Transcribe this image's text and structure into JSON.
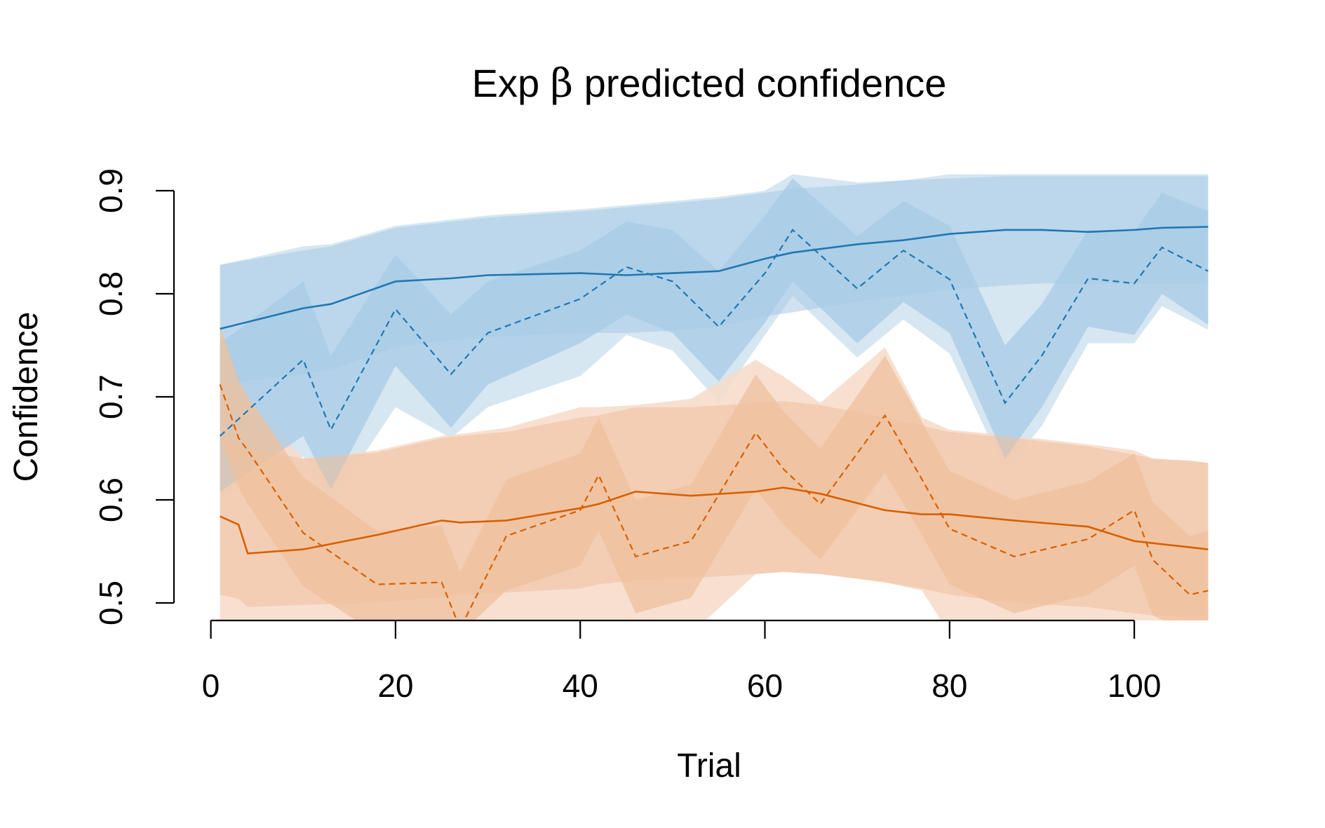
{
  "chart_data": {
    "type": "line",
    "title_prefix": "Exp ",
    "title_symbol": "β",
    "title_suffix": " predicted confidence",
    "xlabel": "Trial",
    "ylabel": "Confidence",
    "xlim": [
      -0.5,
      108.5
    ],
    "ylim": [
      0.5,
      0.9
    ],
    "x_ticks": [
      0,
      20,
      40,
      60,
      80,
      100
    ],
    "x_tick_labels": [
      "0",
      "20",
      "40",
      "60",
      "80",
      "100"
    ],
    "y_ticks": [
      0.5,
      0.6,
      0.7,
      0.8,
      0.9
    ],
    "y_tick_labels": [
      "0.5",
      "0.6",
      "0.7",
      "0.8",
      "0.9"
    ],
    "grid": false,
    "legend": "none",
    "series": [
      {
        "color": "#1f77b4",
        "outer_color": "#cfe3f0",
        "inner_color": "#a7cbe5",
        "points": [
          {
            "x": 1,
            "model": 0.766,
            "obs": 0.662,
            "model_band": [
              0.712,
              0.828
            ],
            "obs_band": [
              0.608,
              0.752
            ],
            "outer_band": [
              0.602,
              0.828
            ]
          },
          {
            "x": 10,
            "model": 0.786,
            "obs": 0.736,
            "model_band": [
              0.722,
              0.842
            ],
            "obs_band": [
              0.662,
              0.812
            ],
            "outer_band": [
              0.642,
              0.846
            ]
          },
          {
            "x": 13,
            "model": 0.79,
            "obs": 0.668,
            "model_band": [
              0.726,
              0.846
            ],
            "obs_band": [
              0.61,
              0.74
            ],
            "outer_band": [
              0.596,
              0.848
            ]
          },
          {
            "x": 20,
            "model": 0.812,
            "obs": 0.785,
            "model_band": [
              0.748,
              0.864
            ],
            "obs_band": [
              0.73,
              0.838
            ],
            "outer_band": [
              0.69,
              0.866
            ]
          },
          {
            "x": 26,
            "model": 0.815,
            "obs": 0.722,
            "model_band": [
              0.755,
              0.87
            ],
            "obs_band": [
              0.67,
              0.78
            ],
            "outer_band": [
              0.66,
              0.872
            ]
          },
          {
            "x": 30,
            "model": 0.818,
            "obs": 0.762,
            "model_band": [
              0.758,
              0.874
            ],
            "obs_band": [
              0.712,
              0.812
            ],
            "outer_band": [
              0.69,
              0.876
            ]
          },
          {
            "x": 40,
            "model": 0.82,
            "obs": 0.795,
            "model_band": [
              0.762,
              0.88
            ],
            "obs_band": [
              0.752,
              0.842
            ],
            "outer_band": [
              0.72,
              0.882
            ]
          },
          {
            "x": 45,
            "model": 0.818,
            "obs": 0.826,
            "model_band": [
              0.762,
              0.884
            ],
            "obs_band": [
              0.78,
              0.87
            ],
            "outer_band": [
              0.76,
              0.886
            ]
          },
          {
            "x": 50,
            "model": 0.82,
            "obs": 0.812,
            "model_band": [
              0.764,
              0.888
            ],
            "obs_band": [
              0.762,
              0.862
            ],
            "outer_band": [
              0.745,
              0.89
            ]
          },
          {
            "x": 55,
            "model": 0.822,
            "obs": 0.768,
            "model_band": [
              0.768,
              0.892
            ],
            "obs_band": [
              0.715,
              0.822
            ],
            "outer_band": [
              0.695,
              0.894
            ]
          },
          {
            "x": 60,
            "model": 0.834,
            "obs": 0.82,
            "model_band": [
              0.778,
              0.898
            ],
            "obs_band": [
              0.772,
              0.876
            ],
            "outer_band": [
              0.76,
              0.9
            ]
          },
          {
            "x": 63,
            "model": 0.84,
            "obs": 0.862,
            "model_band": [
              0.782,
              0.902
            ],
            "obs_band": [
              0.812,
              0.912
            ],
            "outer_band": [
              0.798,
              0.916
            ]
          },
          {
            "x": 70,
            "model": 0.848,
            "obs": 0.805,
            "model_band": [
              0.792,
              0.906
            ],
            "obs_band": [
              0.752,
              0.856
            ],
            "outer_band": [
              0.738,
              0.908
            ]
          },
          {
            "x": 75,
            "model": 0.852,
            "obs": 0.842,
            "model_band": [
              0.798,
              0.91
            ],
            "obs_band": [
              0.792,
              0.89
            ],
            "outer_band": [
              0.775,
              0.91
            ]
          },
          {
            "x": 80,
            "model": 0.858,
            "obs": 0.814,
            "model_band": [
              0.804,
              0.912
            ],
            "obs_band": [
              0.762,
              0.866
            ],
            "outer_band": [
              0.742,
              0.916
            ]
          },
          {
            "x": 86,
            "model": 0.862,
            "obs": 0.694,
            "model_band": [
              0.808,
              0.914
            ],
            "obs_band": [
              0.64,
              0.75
            ],
            "outer_band": [
              0.628,
              0.916
            ]
          },
          {
            "x": 90,
            "model": 0.862,
            "obs": 0.74,
            "model_band": [
              0.81,
              0.914
            ],
            "obs_band": [
              0.69,
              0.79
            ],
            "outer_band": [
              0.672,
              0.916
            ]
          },
          {
            "x": 95,
            "model": 0.86,
            "obs": 0.815,
            "model_band": [
              0.81,
              0.914
            ],
            "obs_band": [
              0.768,
              0.862
            ],
            "outer_band": [
              0.752,
              0.916
            ]
          },
          {
            "x": 100,
            "model": 0.862,
            "obs": 0.81,
            "model_band": [
              0.81,
              0.914
            ],
            "obs_band": [
              0.76,
              0.86
            ],
            "outer_band": [
              0.752,
              0.916
            ]
          },
          {
            "x": 103,
            "model": 0.864,
            "obs": 0.845,
            "model_band": [
              0.81,
              0.914
            ],
            "obs_band": [
              0.8,
              0.898
            ],
            "outer_band": [
              0.788,
              0.916
            ]
          },
          {
            "x": 108,
            "model": 0.865,
            "obs": 0.822,
            "model_band": [
              0.81,
              0.914
            ],
            "obs_band": [
              0.77,
              0.88
            ],
            "outer_band": [
              0.765,
              0.916
            ]
          }
        ]
      },
      {
        "color": "#d95f02",
        "outer_color": "#f7dbc9",
        "inner_color": "#efc09c",
        "points": [
          {
            "x": 1,
            "model": 0.584,
            "obs": 0.712,
            "model_band": [
              0.508,
              0.662
            ],
            "obs_band": [
              0.66,
              0.768
            ],
            "outer_band": [
              0.47,
              0.768
            ]
          },
          {
            "x": 3,
            "model": 0.576,
            "obs": 0.66,
            "model_band": [
              0.504,
              0.656
            ],
            "obs_band": [
              0.612,
              0.716
            ],
            "outer_band": [
              0.47,
              0.716
            ]
          },
          {
            "x": 4,
            "model": 0.548,
            "obs": 0.648,
            "model_band": [
              0.496,
              0.65
            ],
            "obs_band": [
              0.596,
              0.7
            ],
            "outer_band": [
              0.47,
              0.7
            ]
          },
          {
            "x": 10,
            "model": 0.552,
            "obs": 0.568,
            "model_band": [
              0.498,
              0.64
            ],
            "obs_band": [
              0.516,
              0.622
            ],
            "outer_band": [
              0.47,
              0.64
            ]
          },
          {
            "x": 18,
            "model": 0.566,
            "obs": 0.518,
            "model_band": [
              0.5,
              0.646
            ],
            "obs_band": [
              0.47,
              0.57
            ],
            "outer_band": [
              0.47,
              0.648
            ]
          },
          {
            "x": 25,
            "model": 0.58,
            "obs": 0.52,
            "model_band": [
              0.506,
              0.66
            ],
            "obs_band": [
              0.47,
              0.575
            ],
            "outer_band": [
              0.47,
              0.662
            ]
          },
          {
            "x": 27,
            "model": 0.578,
            "obs": 0.475,
            "model_band": [
              0.508,
              0.662
            ],
            "obs_band": [
              0.47,
              0.53
            ],
            "outer_band": [
              0.47,
              0.664
            ]
          },
          {
            "x": 32,
            "model": 0.58,
            "obs": 0.565,
            "model_band": [
              0.51,
              0.666
            ],
            "obs_band": [
              0.512,
              0.62
            ],
            "outer_band": [
              0.47,
              0.67
            ]
          },
          {
            "x": 40,
            "model": 0.592,
            "obs": 0.59,
            "model_band": [
              0.514,
              0.68
            ],
            "obs_band": [
              0.536,
              0.645
            ],
            "outer_band": [
              0.47,
              0.69
            ]
          },
          {
            "x": 42,
            "model": 0.596,
            "obs": 0.624,
            "model_band": [
              0.518,
              0.682
            ],
            "obs_band": [
              0.57,
              0.68
            ],
            "outer_band": [
              0.47,
              0.69
            ]
          },
          {
            "x": 46,
            "model": 0.608,
            "obs": 0.545,
            "model_band": [
              0.522,
              0.69
            ],
            "obs_band": [
              0.49,
              0.6
            ],
            "outer_band": [
              0.47,
              0.692
            ]
          },
          {
            "x": 52,
            "model": 0.604,
            "obs": 0.56,
            "model_band": [
              0.524,
              0.69
            ],
            "obs_band": [
              0.505,
              0.615
            ],
            "outer_band": [
              0.47,
              0.698
            ]
          },
          {
            "x": 59,
            "model": 0.608,
            "obs": 0.665,
            "model_band": [
              0.528,
              0.694
            ],
            "obs_band": [
              0.61,
              0.722
            ],
            "outer_band": [
              0.528,
              0.736
            ]
          },
          {
            "x": 62,
            "model": 0.612,
            "obs": 0.63,
            "model_band": [
              0.53,
              0.696
            ],
            "obs_band": [
              0.576,
              0.686
            ],
            "outer_band": [
              0.53,
              0.72
            ]
          },
          {
            "x": 66,
            "model": 0.606,
            "obs": 0.596,
            "model_band": [
              0.528,
              0.692
            ],
            "obs_band": [
              0.542,
              0.65
            ],
            "outer_band": [
              0.528,
              0.694
            ]
          },
          {
            "x": 73,
            "model": 0.59,
            "obs": 0.682,
            "model_band": [
              0.52,
              0.68
            ],
            "obs_band": [
              0.626,
              0.74
            ],
            "outer_band": [
              0.52,
              0.748
            ]
          },
          {
            "x": 77,
            "model": 0.586,
            "obs": 0.62,
            "model_band": [
              0.514,
              0.672
            ],
            "obs_band": [
              0.566,
              0.676
            ],
            "outer_band": [
              0.512,
              0.68
            ]
          },
          {
            "x": 80,
            "model": 0.586,
            "obs": 0.572,
            "model_band": [
              0.508,
              0.666
            ],
            "obs_band": [
              0.518,
              0.628
            ],
            "outer_band": [
              0.47,
              0.668
            ]
          },
          {
            "x": 87,
            "model": 0.58,
            "obs": 0.545,
            "model_band": [
              0.5,
              0.66
            ],
            "obs_band": [
              0.49,
              0.6
            ],
            "outer_band": [
              0.47,
              0.662
            ]
          },
          {
            "x": 95,
            "model": 0.574,
            "obs": 0.562,
            "model_band": [
              0.496,
              0.652
            ],
            "obs_band": [
              0.508,
              0.618
            ],
            "outer_band": [
              0.47,
              0.654
            ]
          },
          {
            "x": 100,
            "model": 0.56,
            "obs": 0.59,
            "model_band": [
              0.49,
              0.644
            ],
            "obs_band": [
              0.536,
              0.645
            ],
            "outer_band": [
              0.47,
              0.648
            ]
          },
          {
            "x": 102,
            "model": 0.558,
            "obs": 0.542,
            "model_band": [
              0.488,
              0.64
            ],
            "obs_band": [
              0.488,
              0.598
            ],
            "outer_band": [
              0.47,
              0.64
            ]
          },
          {
            "x": 106,
            "model": 0.554,
            "obs": 0.508,
            "model_band": [
              0.486,
              0.638
            ],
            "obs_band": [
              0.47,
              0.565
            ],
            "outer_band": [
              0.47,
              0.638
            ]
          },
          {
            "x": 108,
            "model": 0.552,
            "obs": 0.512,
            "model_band": [
              0.486,
              0.636
            ],
            "obs_band": [
              0.47,
              0.57
            ],
            "outer_band": [
              0.47,
              0.636
            ]
          }
        ]
      }
    ]
  }
}
